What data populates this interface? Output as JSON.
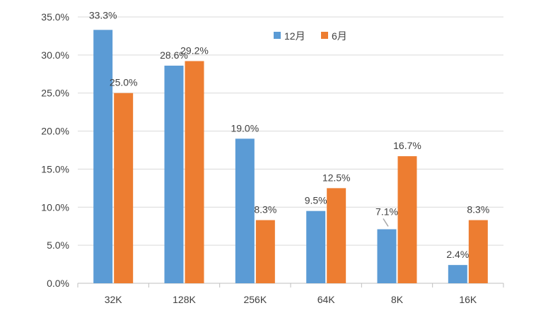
{
  "chart_data": {
    "type": "bar",
    "title": "",
    "xlabel": "",
    "ylabel": "",
    "ylim": [
      0,
      35
    ],
    "ytick_step": 5,
    "yticks": [
      "0.0%",
      "5.0%",
      "10.0%",
      "15.0%",
      "20.0%",
      "25.0%",
      "30.0%",
      "35.0%"
    ],
    "grid": true,
    "legend_position": "top-center",
    "categories": [
      "32K",
      "128K",
      "256K",
      "64K",
      "8K",
      "16K"
    ],
    "series": [
      {
        "name": "12月",
        "color": "#5B9BD5",
        "values": [
          33.3,
          28.6,
          19.0,
          9.5,
          7.1,
          2.4
        ],
        "labels": [
          "33.3%",
          "28.6%",
          "19.0%",
          "9.5%",
          "7.1%",
          "2.4%"
        ]
      },
      {
        "name": "6月",
        "color": "#ED7D31",
        "values": [
          25.0,
          29.2,
          8.3,
          12.5,
          16.7,
          8.3
        ],
        "labels": [
          "25.0%",
          "29.2%",
          "8.3%",
          "12.5%",
          "16.7%",
          "8.3%"
        ]
      }
    ]
  }
}
